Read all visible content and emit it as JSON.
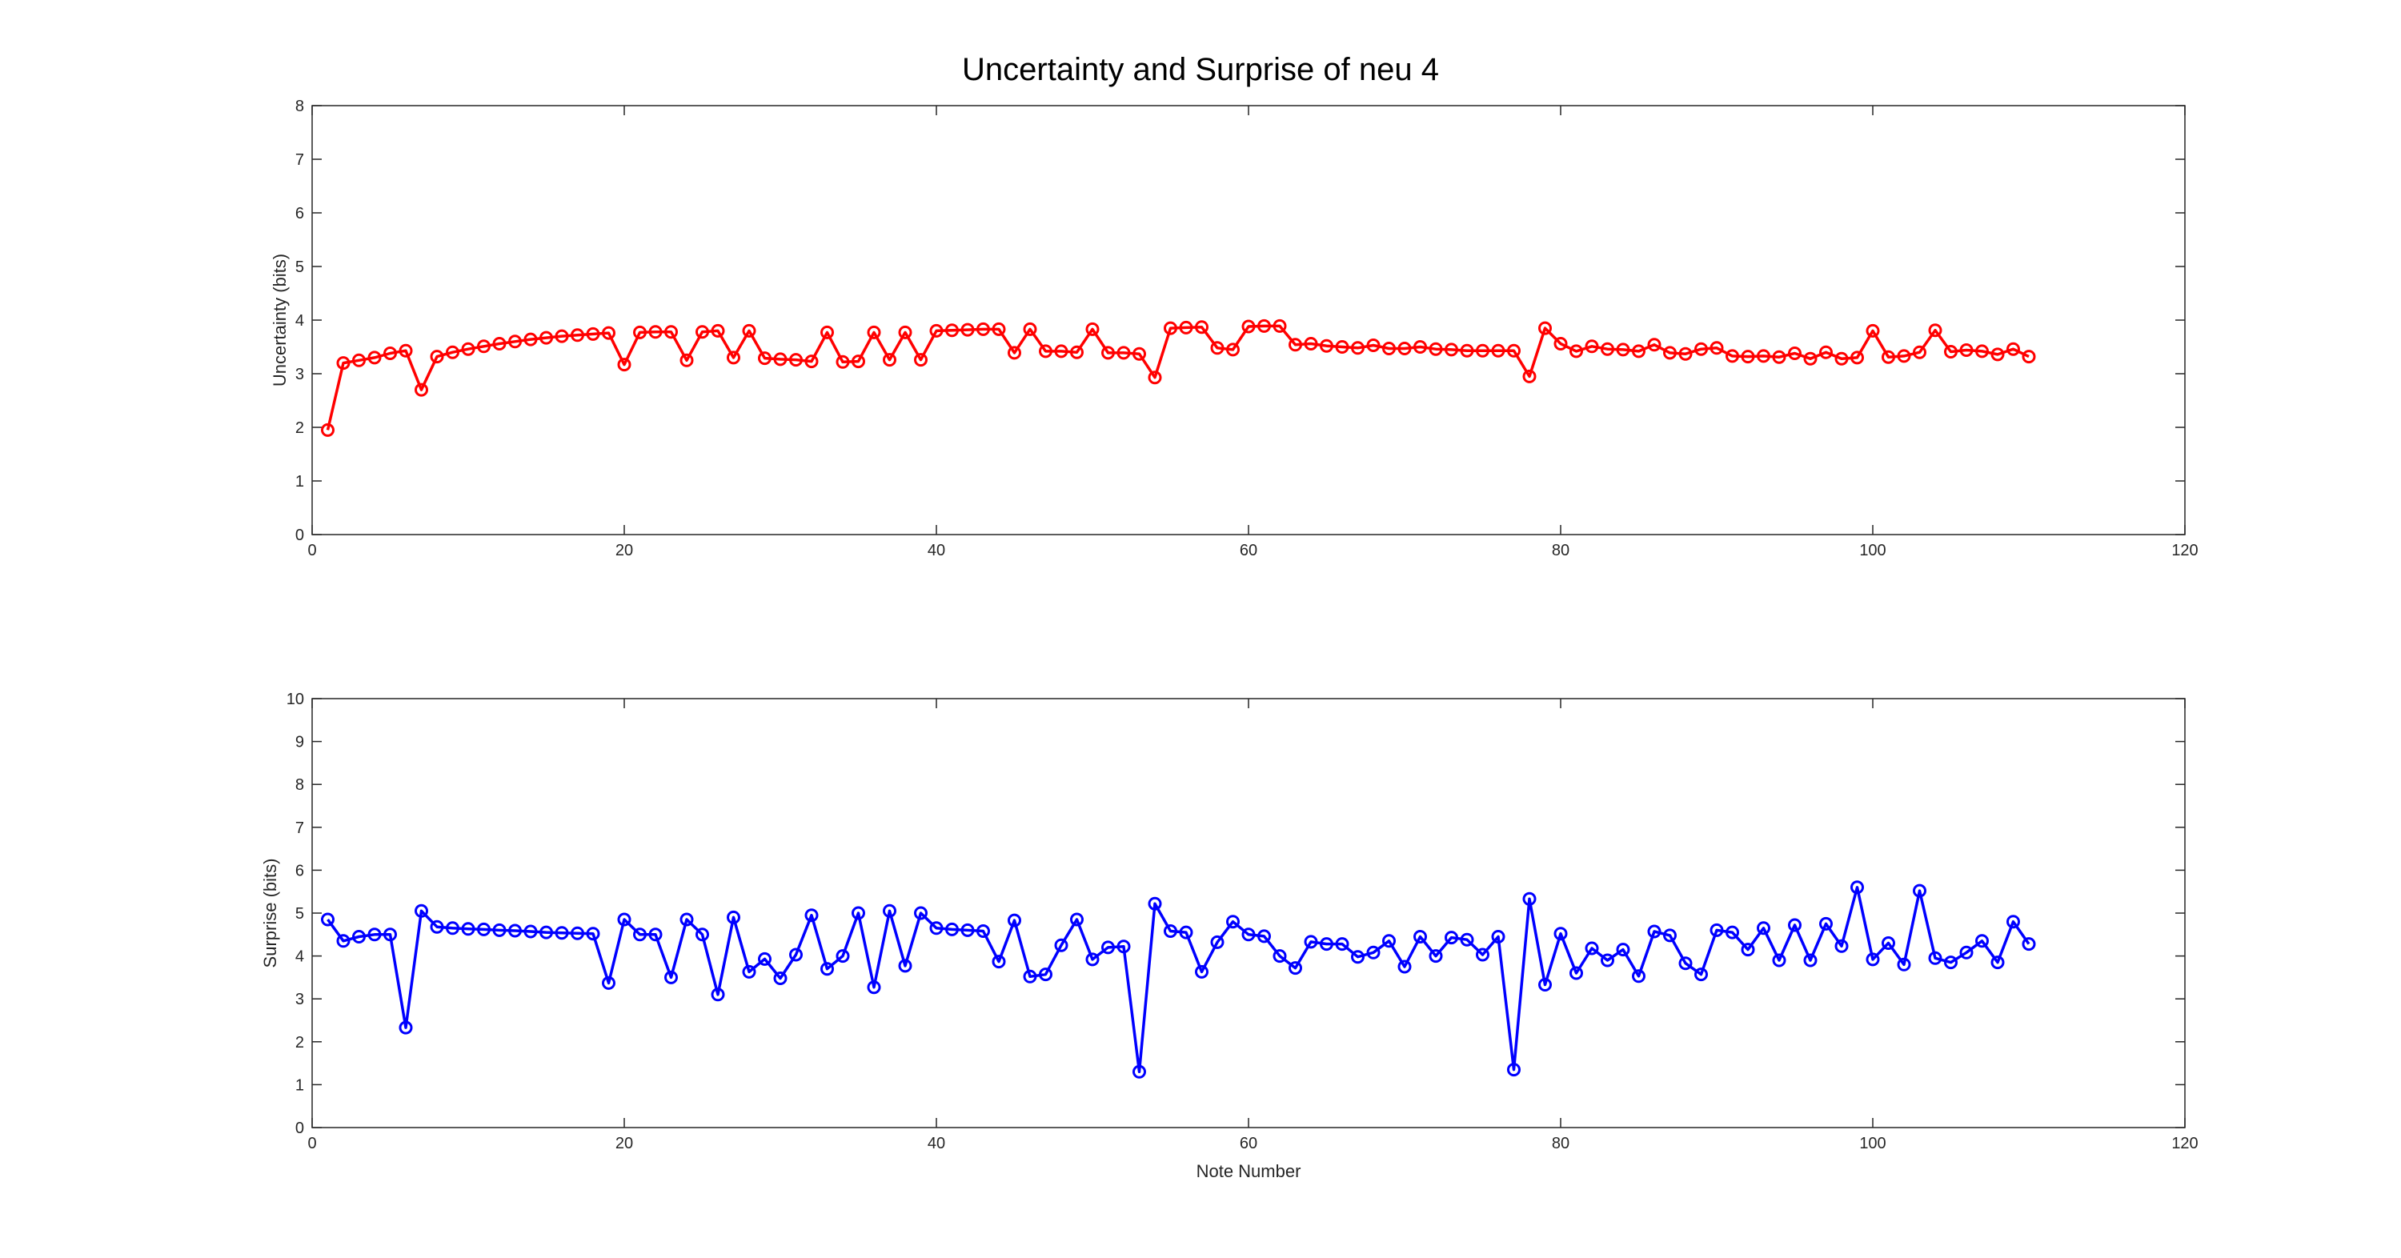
{
  "title": "Uncertainty and Surprise of neu 4",
  "colors": {
    "uncertainty": "#ff0000",
    "surprise": "#0000ff",
    "axis": "#262626"
  },
  "chart_data": [
    {
      "type": "line",
      "marker": "circle",
      "xlabel": "",
      "ylabel": "Uncertainty (bits)",
      "xlim": [
        0,
        120
      ],
      "ylim": [
        0,
        8
      ],
      "xticks": [
        0,
        20,
        40,
        60,
        80,
        100,
        120
      ],
      "yticks": [
        0,
        1,
        2,
        3,
        4,
        5,
        6,
        7,
        8
      ],
      "grid": false,
      "series": [
        {
          "color": "#ff0000",
          "x": [
            1,
            2,
            3,
            4,
            5,
            6,
            7,
            8,
            9,
            10,
            11,
            12,
            13,
            14,
            15,
            16,
            17,
            18,
            19,
            20,
            21,
            22,
            23,
            24,
            25,
            26,
            27,
            28,
            29,
            30,
            31,
            32,
            33,
            34,
            35,
            36,
            37,
            38,
            39,
            40,
            41,
            42,
            43,
            44,
            45,
            46,
            47,
            48,
            49,
            50,
            51,
            52,
            53,
            54,
            55,
            56,
            57,
            58,
            59,
            60,
            61,
            62,
            63,
            64,
            65,
            66,
            67,
            68,
            69,
            70,
            71,
            72,
            73,
            74,
            75,
            76,
            77,
            78,
            79,
            80,
            81,
            82,
            83,
            84,
            85,
            86,
            87,
            88,
            89,
            90,
            91,
            92,
            93,
            94,
            95,
            96,
            97,
            98,
            99,
            100,
            101,
            102,
            103,
            104,
            105,
            106,
            107,
            108,
            109,
            110
          ],
          "values": [
            1.95,
            3.2,
            3.25,
            3.3,
            3.38,
            3.43,
            2.7,
            3.32,
            3.4,
            3.46,
            3.51,
            3.56,
            3.6,
            3.64,
            3.67,
            3.7,
            3.72,
            3.74,
            3.76,
            3.17,
            3.77,
            3.78,
            3.78,
            3.25,
            3.78,
            3.8,
            3.3,
            3.8,
            3.29,
            3.27,
            3.26,
            3.23,
            3.77,
            3.22,
            3.23,
            3.77,
            3.26,
            3.77,
            3.26,
            3.8,
            3.81,
            3.82,
            3.83,
            3.83,
            3.39,
            3.83,
            3.42,
            3.42,
            3.4,
            3.83,
            3.39,
            3.39,
            3.37,
            2.93,
            3.85,
            3.86,
            3.87,
            3.48,
            3.45,
            3.88,
            3.89,
            3.89,
            3.54,
            3.56,
            3.52,
            3.5,
            3.48,
            3.53,
            3.47,
            3.47,
            3.5,
            3.46,
            3.45,
            3.43,
            3.43,
            3.43,
            3.43,
            2.95,
            3.85,
            3.56,
            3.42,
            3.51,
            3.46,
            3.45,
            3.42,
            3.54,
            3.39,
            3.37,
            3.46,
            3.48,
            3.33,
            3.32,
            3.33,
            3.31,
            3.38,
            3.28,
            3.4,
            3.28,
            3.3,
            3.8,
            3.31,
            3.33,
            3.4,
            3.81,
            3.41,
            3.44,
            3.42,
            3.36,
            3.46,
            3.32
          ]
        }
      ]
    },
    {
      "type": "line",
      "marker": "circle",
      "xlabel": "Note Number",
      "ylabel": "Surprise (bits)",
      "xlim": [
        0,
        120
      ],
      "ylim": [
        0,
        10
      ],
      "xticks": [
        0,
        20,
        40,
        60,
        80,
        100,
        120
      ],
      "yticks": [
        0,
        1,
        2,
        3,
        4,
        5,
        6,
        7,
        8,
        9,
        10
      ],
      "grid": false,
      "series": [
        {
          "color": "#0000ff",
          "x": [
            1,
            2,
            3,
            4,
            5,
            6,
            7,
            8,
            9,
            10,
            11,
            12,
            13,
            14,
            15,
            16,
            17,
            18,
            19,
            20,
            21,
            22,
            23,
            24,
            25,
            26,
            27,
            28,
            29,
            30,
            31,
            32,
            33,
            34,
            35,
            36,
            37,
            38,
            39,
            40,
            41,
            42,
            43,
            44,
            45,
            46,
            47,
            48,
            49,
            50,
            51,
            52,
            53,
            54,
            55,
            56,
            57,
            58,
            59,
            60,
            61,
            62,
            63,
            64,
            65,
            66,
            67,
            68,
            69,
            70,
            71,
            72,
            73,
            74,
            75,
            76,
            77,
            78,
            79,
            80,
            81,
            82,
            83,
            84,
            85,
            86,
            87,
            88,
            89,
            90,
            91,
            92,
            93,
            94,
            95,
            96,
            97,
            98,
            99,
            100,
            101,
            102,
            103,
            104,
            105,
            106,
            107,
            108,
            109,
            110
          ],
          "values": [
            4.85,
            4.35,
            4.45,
            4.5,
            4.5,
            2.33,
            5.05,
            4.68,
            4.65,
            4.63,
            4.62,
            4.6,
            4.59,
            4.57,
            4.55,
            4.54,
            4.53,
            4.52,
            3.37,
            4.85,
            4.5,
            4.5,
            3.5,
            4.85,
            4.5,
            3.1,
            4.9,
            3.63,
            3.93,
            3.48,
            4.03,
            4.95,
            3.7,
            4.0,
            5.0,
            3.27,
            5.05,
            3.77,
            5.0,
            4.65,
            4.62,
            4.6,
            4.58,
            3.87,
            4.83,
            3.52,
            3.57,
            4.25,
            4.85,
            3.92,
            4.2,
            4.22,
            1.3,
            5.22,
            4.58,
            4.55,
            3.63,
            4.32,
            4.8,
            4.5,
            4.46,
            4.0,
            3.72,
            4.33,
            4.28,
            4.28,
            3.98,
            4.08,
            4.35,
            3.75,
            4.45,
            4.0,
            4.43,
            4.38,
            4.03,
            4.45,
            1.35,
            5.33,
            3.33,
            4.52,
            3.6,
            4.18,
            3.9,
            4.15,
            3.53,
            4.57,
            4.48,
            3.83,
            3.57,
            4.6,
            4.55,
            4.15,
            4.65,
            3.9,
            4.72,
            3.9,
            4.75,
            4.23,
            5.6,
            3.92,
            4.3,
            3.8,
            5.52,
            3.95,
            3.85,
            4.08,
            4.35,
            3.85,
            4.8,
            4.28
          ]
        }
      ]
    }
  ]
}
